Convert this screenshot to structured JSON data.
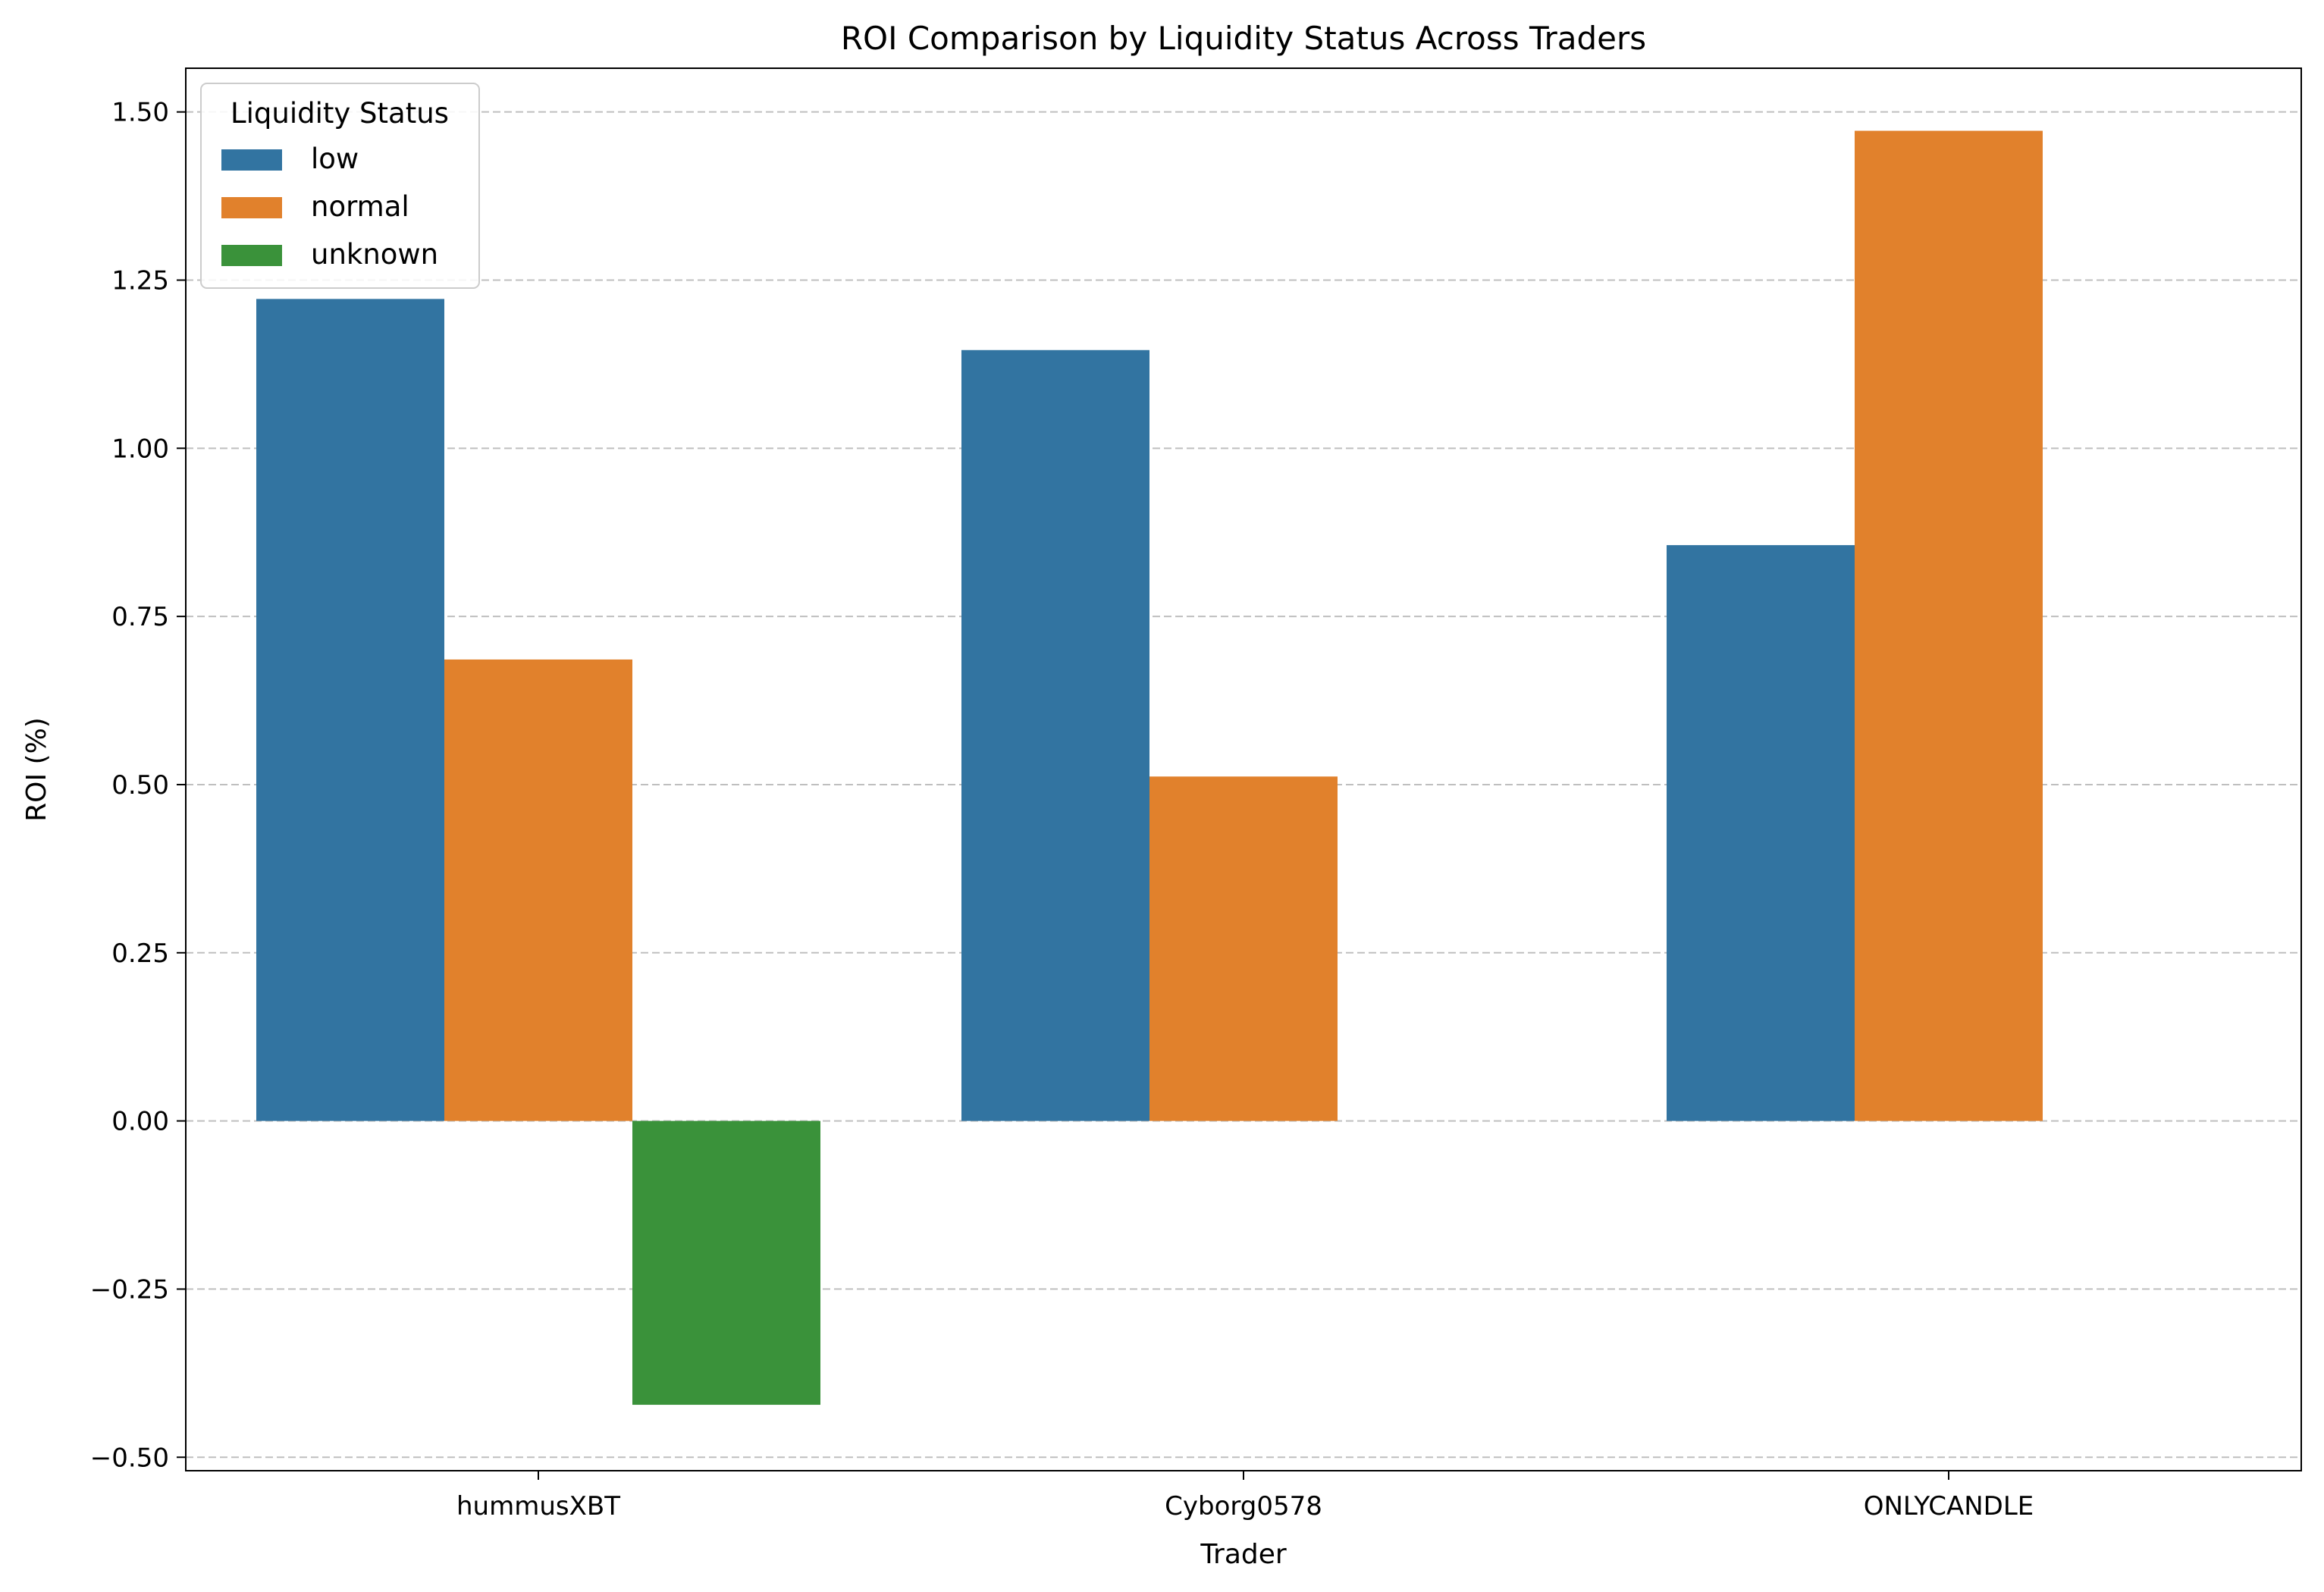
{
  "chart_data": {
    "type": "bar",
    "title": "ROI Comparison by Liquidity Status Across Traders",
    "xlabel": "Trader",
    "ylabel": "ROI (%)",
    "categories": [
      "hummusXBT",
      "Cyborg0578",
      "ONLYCANDLE"
    ],
    "series": [
      {
        "name": "low",
        "color": "#3274a1",
        "values": [
          1.222,
          1.146,
          0.856
        ]
      },
      {
        "name": "normal",
        "color": "#e1812c",
        "values": [
          0.686,
          0.512,
          1.472
        ]
      },
      {
        "name": "unknown",
        "color": "#3a923a",
        "values": [
          -0.422,
          null,
          null
        ]
      }
    ],
    "ylim": [
      -0.52,
      1.565
    ],
    "yticks": [
      -0.5,
      -0.25,
      0.0,
      0.25,
      0.5,
      0.75,
      1.0,
      1.25,
      1.5
    ],
    "ytick_labels": [
      "−0.50",
      "−0.25",
      "0.00",
      "0.25",
      "0.50",
      "0.75",
      "1.00",
      "1.25",
      "1.50"
    ],
    "grid": "y-dashed",
    "legend": {
      "title": "Liquidity Status",
      "placement": "top-left"
    }
  }
}
